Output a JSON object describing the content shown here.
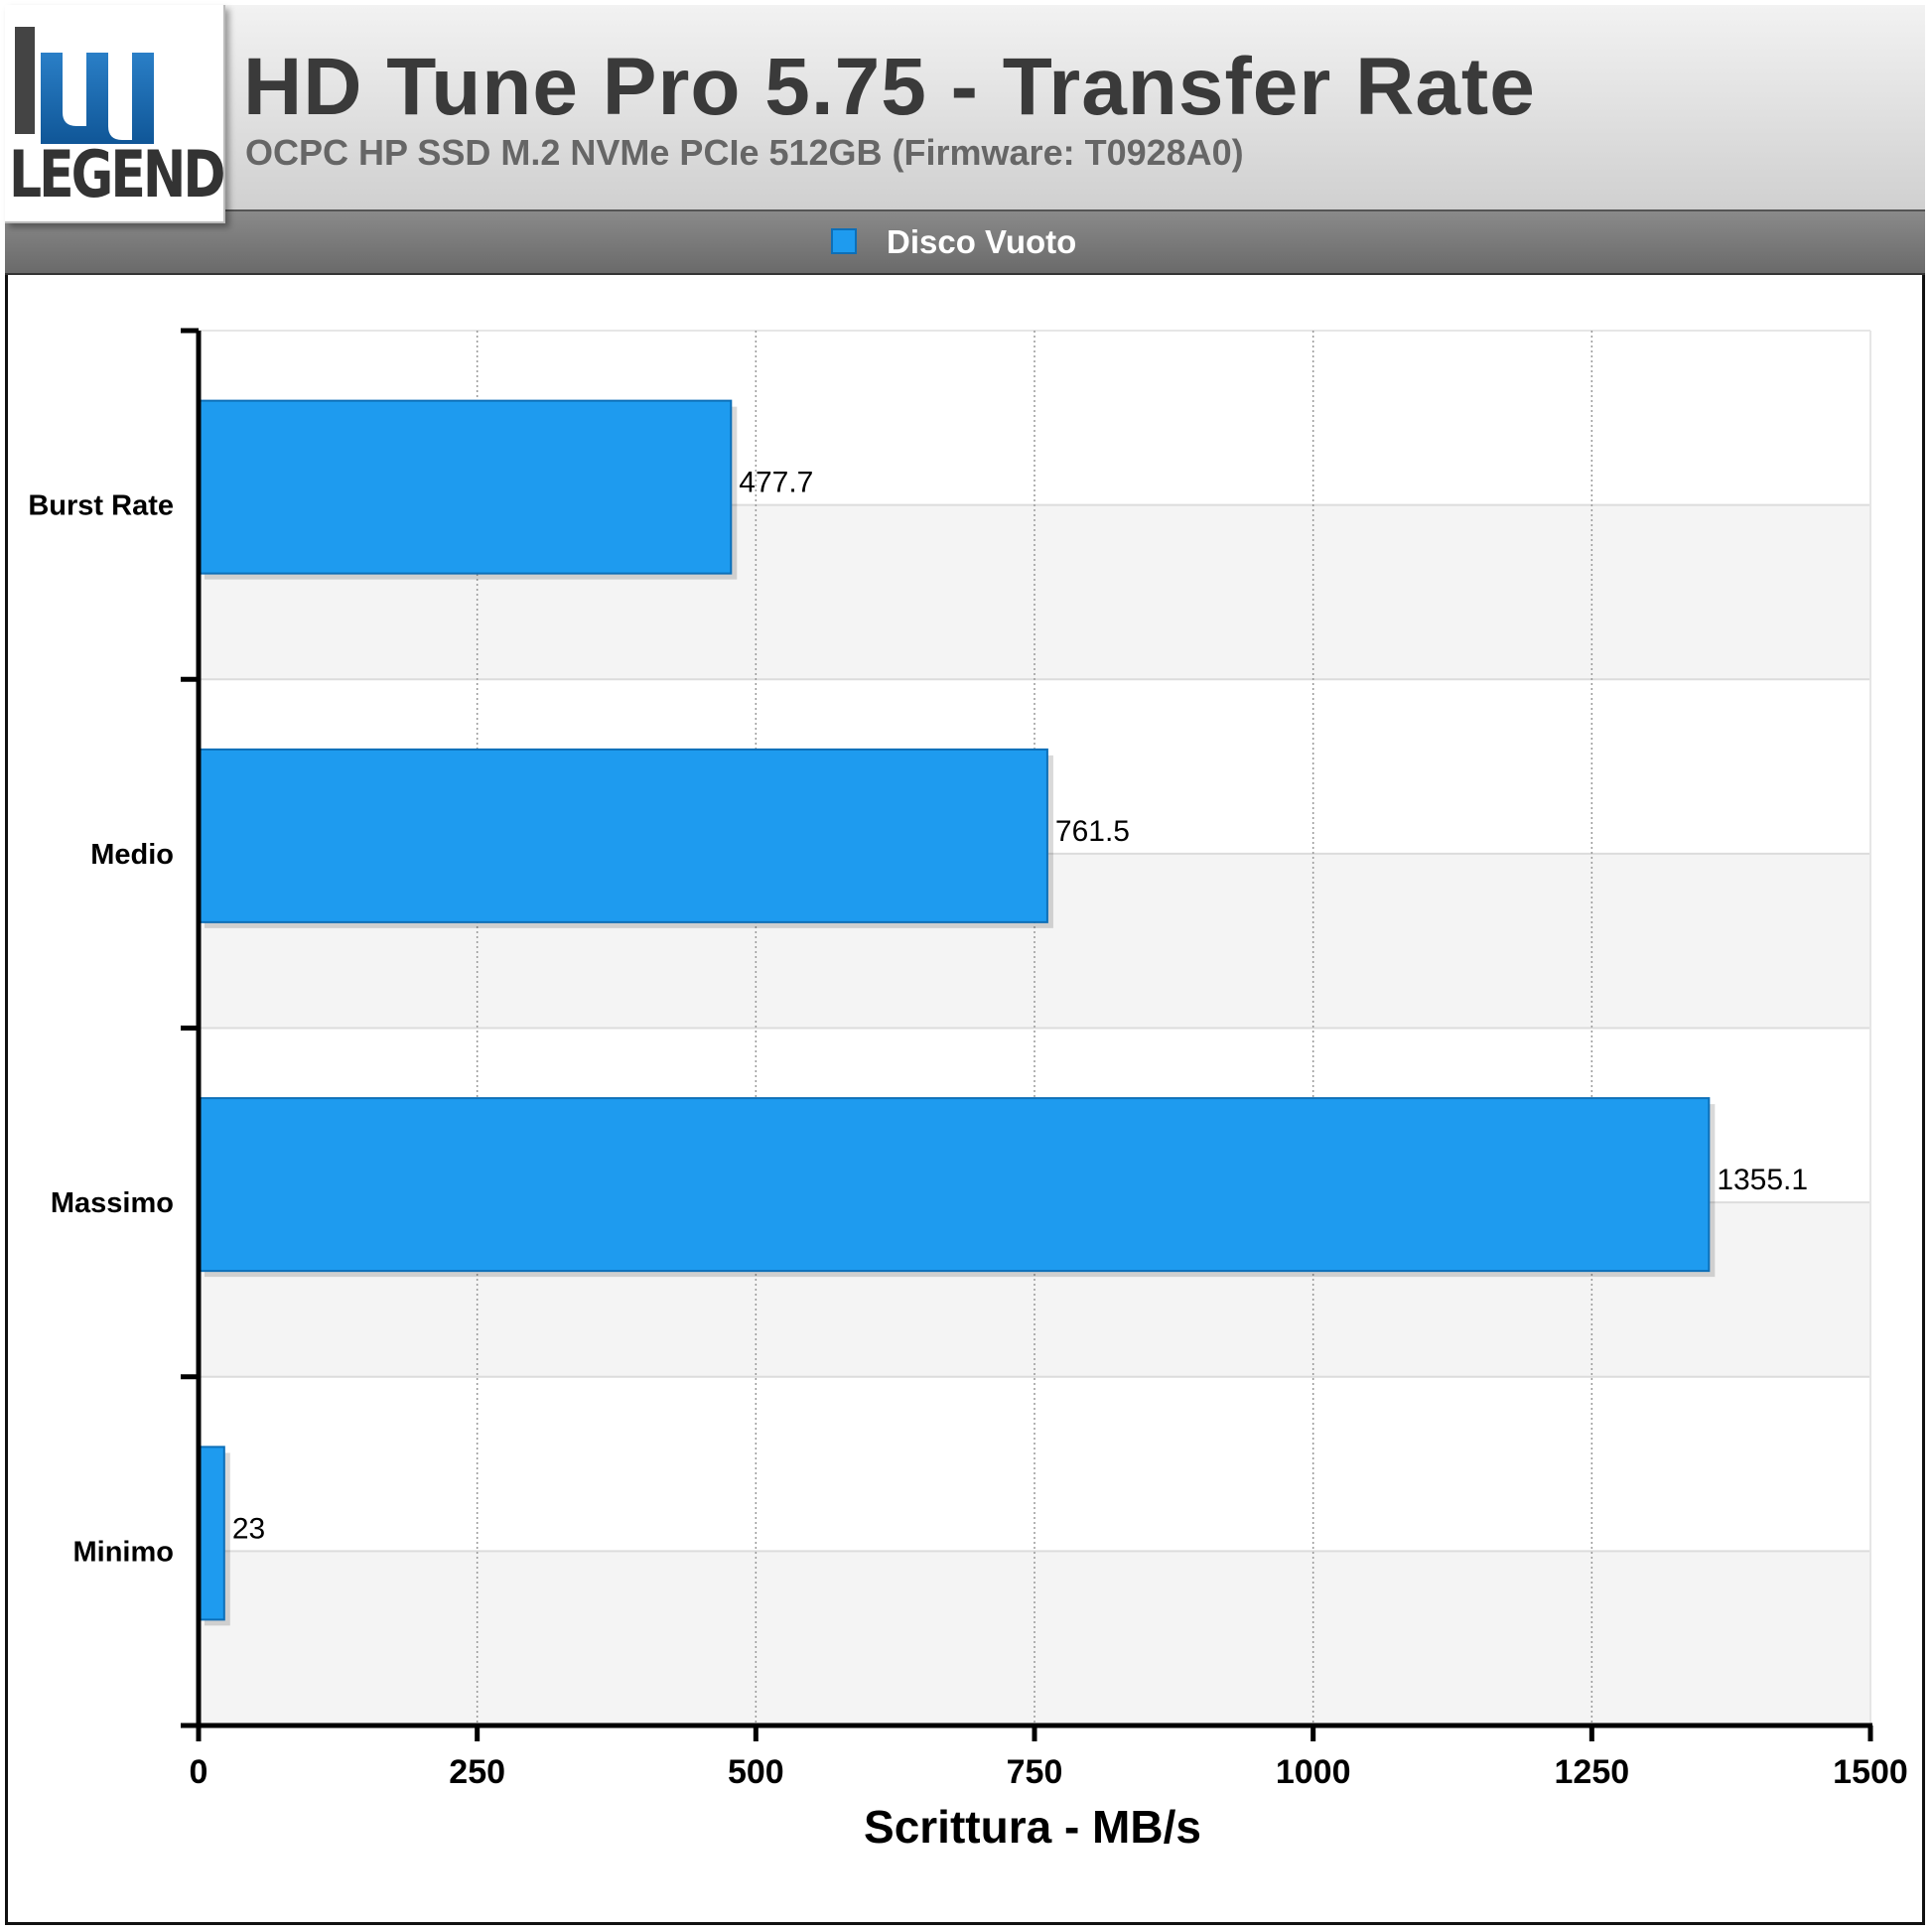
{
  "header": {
    "logo_text": "LEGEND",
    "title": "HD Tune Pro 5.75 - Transfer Rate",
    "subtitle": "OCPC HP SSD M.2 NVMe PCIe 512GB (Firmware: T0928A0)"
  },
  "legend": {
    "label": "Disco Vuoto",
    "color": "#1e9bef"
  },
  "chart_data": {
    "type": "bar",
    "orientation": "horizontal",
    "categories": [
      "Burst Rate",
      "Medio",
      "Massimo",
      "Minimo"
    ],
    "series": [
      {
        "name": "Disco Vuoto",
        "values": [
          477.7,
          761.5,
          1355.1,
          23
        ],
        "labels": [
          "477.7",
          "761.5",
          "1355.1",
          "23"
        ]
      }
    ],
    "xlabel": "Scrittura - MB/s",
    "xlim": [
      0,
      1500
    ],
    "xticks": [
      0,
      250,
      500,
      750,
      1000,
      1250,
      1500
    ],
    "xtick_labels": [
      "0",
      "250",
      "500",
      "750",
      "1000",
      "1250",
      "1500"
    ],
    "grid": true,
    "legend_position": "top-center",
    "colors": {
      "bar": "#1e9bef",
      "bar_border": "#0d6fb8",
      "band_alt": "#f4f4f4"
    }
  }
}
